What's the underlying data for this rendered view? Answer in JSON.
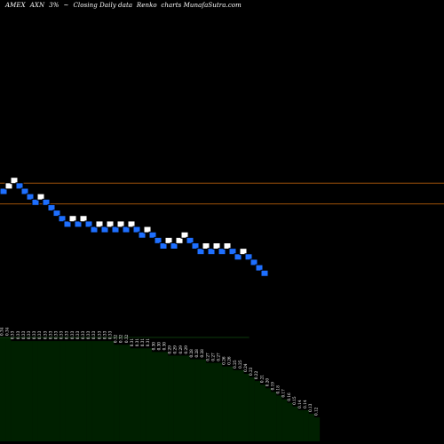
{
  "header": {
    "exchange": "AMEX",
    "symbol": "AXN",
    "change": "3%",
    "arrow": "~",
    "subtitle": "Closing Daily data  Renko  charts MunafaSutra.com"
  },
  "colors": {
    "background": "#000000",
    "up_brick": "#ffffff",
    "down_brick": "#1e6fff",
    "brick_border": "#000000",
    "level_line": "#a0520a",
    "volume_fill": "#002000",
    "volume_border": "#0c3a0c",
    "volume_label": "#ffffff"
  },
  "chart_data": {
    "type": "renko",
    "title": "AMEX AXN 3% Closing Daily data Renko charts MunafaSutra.com",
    "brick_directions": [
      "down",
      "up",
      "up",
      "down",
      "down",
      "down",
      "down",
      "up",
      "down",
      "down",
      "down",
      "down",
      "down",
      "up",
      "down",
      "up",
      "down",
      "down",
      "up",
      "down",
      "up",
      "down",
      "up",
      "down",
      "up",
      "down",
      "down",
      "up",
      "down",
      "down",
      "down",
      "up",
      "down",
      "up",
      "up",
      "down",
      "down",
      "down",
      "up",
      "down",
      "up",
      "down",
      "up",
      "down",
      "down",
      "up",
      "down",
      "down",
      "down",
      "down"
    ],
    "brick_levels": [
      0,
      1,
      2,
      1,
      0,
      -1,
      -2,
      -1,
      -2,
      -3,
      -4,
      -5,
      -6,
      -5,
      -6,
      -5,
      -6,
      -7,
      -6,
      -7,
      -6,
      -7,
      -6,
      -7,
      -6,
      -7,
      -8,
      -7,
      -8,
      -9,
      -10,
      -9,
      -10,
      -9,
      -8,
      -9,
      -10,
      -11,
      -10,
      -11,
      -10,
      -11,
      -10,
      -11,
      -12,
      -11,
      -12,
      -13,
      -14,
      -15
    ],
    "horizontal_levels": [
      1.5,
      -2.3
    ],
    "volume_labels": [
      "0.34",
      "0.34",
      "0.33",
      "0.33",
      "0.33",
      "0.33",
      "0.33",
      "0.33",
      "0.33",
      "0.33",
      "0.33",
      "0.33",
      "0.33",
      "0.33",
      "0.33",
      "0.33",
      "0.33",
      "0.33",
      "0.33",
      "0.33",
      "0.33",
      "0.32",
      "0.32",
      "0.32",
      "0.31",
      "0.31",
      "0.31",
      "0.31",
      "0.30",
      "0.30",
      "0.30",
      "0.29",
      "0.29",
      "0.29",
      "0.29",
      "0.28",
      "0.28",
      "0.28",
      "0.27",
      "0.27",
      "0.27",
      "0.26",
      "0.26",
      "0.25",
      "0.25",
      "0.24",
      "0.23",
      "0.22",
      "0.21",
      "0.20",
      "0.19",
      "0.18",
      "0.17",
      "0.16",
      "0.15",
      "0.14",
      "0.14",
      "0.13",
      "0.12"
    ]
  }
}
